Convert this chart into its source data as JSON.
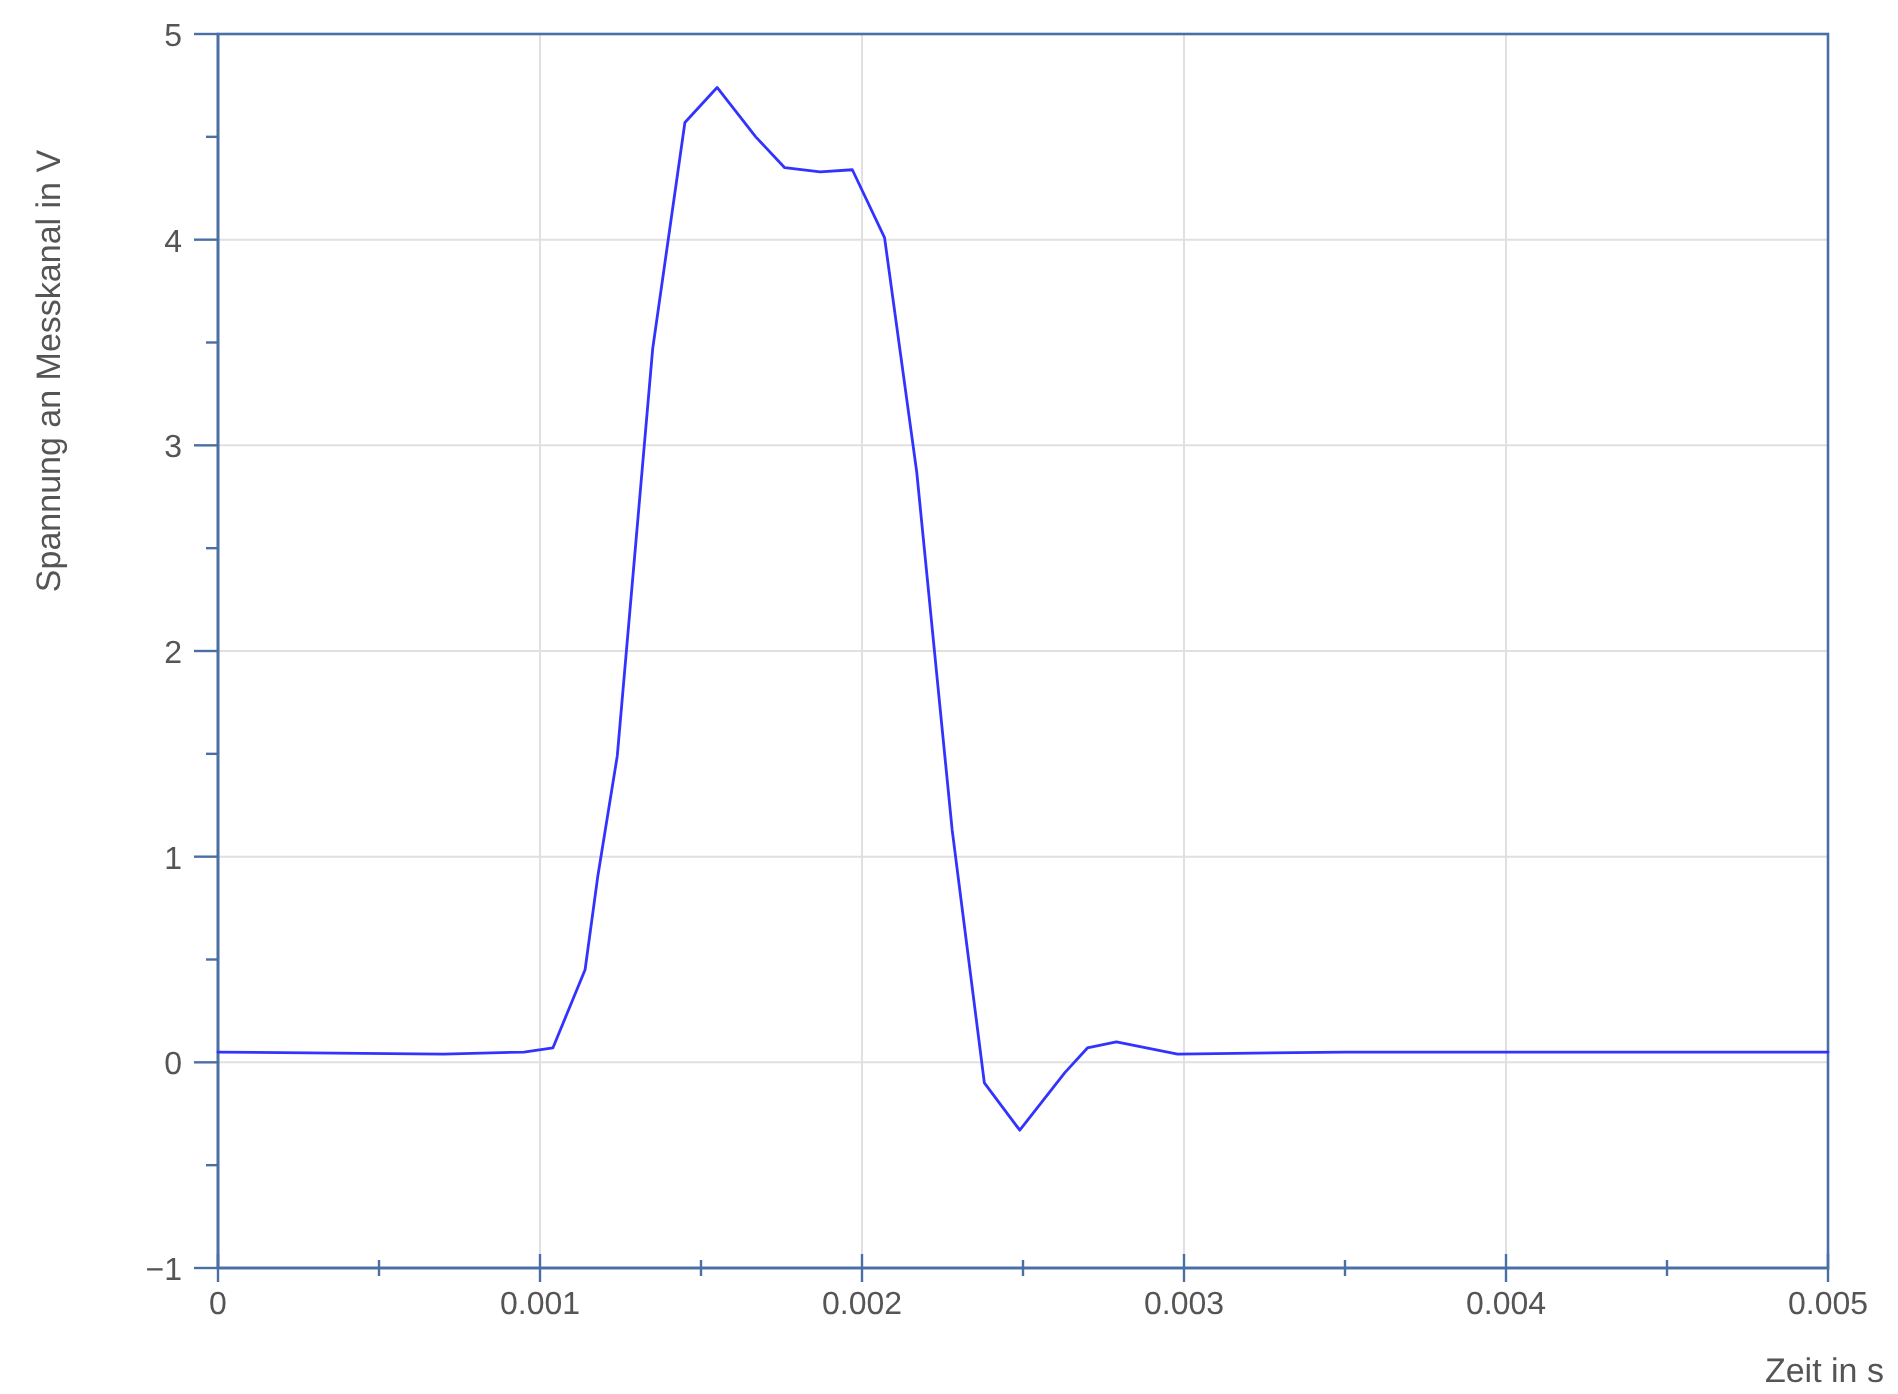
{
  "chart_data": {
    "type": "line",
    "xlabel": "Zeit in s",
    "ylabel": "Spannung an Messkanal in V",
    "x": [
      0,
      0.0007,
      0.00095,
      0.00104,
      0.00114,
      0.00118,
      0.00124,
      0.00135,
      0.00145,
      0.00155,
      0.00167,
      0.00176,
      0.00187,
      0.00197,
      0.00207,
      0.00217,
      0.00228,
      0.00238,
      0.00249,
      0.00263,
      0.0027,
      0.00279,
      0.00298,
      0.0035,
      0.005
    ],
    "series": [
      {
        "color": "#3333ff",
        "values": [
          0.05,
          0.04,
          0.05,
          0.07,
          0.45,
          0.91,
          1.49,
          3.47,
          4.57,
          4.74,
          4.5,
          4.35,
          4.33,
          4.34,
          4.01,
          2.87,
          1.13,
          -0.1,
          -0.33,
          -0.05,
          0.07,
          0.1,
          0.04,
          0.05,
          0.05
        ]
      }
    ],
    "xlim": [
      0,
      0.005
    ],
    "ylim": [
      -1,
      5
    ],
    "xticks": [
      0,
      {
        "value": 0.0005,
        "label": null
      },
      0.001,
      {
        "value": 0.0015,
        "label": null
      },
      0.002,
      {
        "value": 0.0025,
        "label": null
      },
      0.003,
      {
        "value": 0.0035,
        "label": null
      },
      0.004,
      {
        "value": 0.0045,
        "label": null
      },
      0.005
    ],
    "yticks": [
      -1,
      {
        "value": -0.5,
        "label": null
      },
      0,
      {
        "value": 0.5,
        "label": null
      },
      1,
      {
        "value": 1.5,
        "label": null
      },
      2,
      {
        "value": 2.5,
        "label": null
      },
      3,
      {
        "value": 3.5,
        "label": null
      },
      4,
      {
        "value": 4.5,
        "label": null
      },
      5
    ],
    "grid": true,
    "marker": "none",
    "line_style": "solid"
  }
}
